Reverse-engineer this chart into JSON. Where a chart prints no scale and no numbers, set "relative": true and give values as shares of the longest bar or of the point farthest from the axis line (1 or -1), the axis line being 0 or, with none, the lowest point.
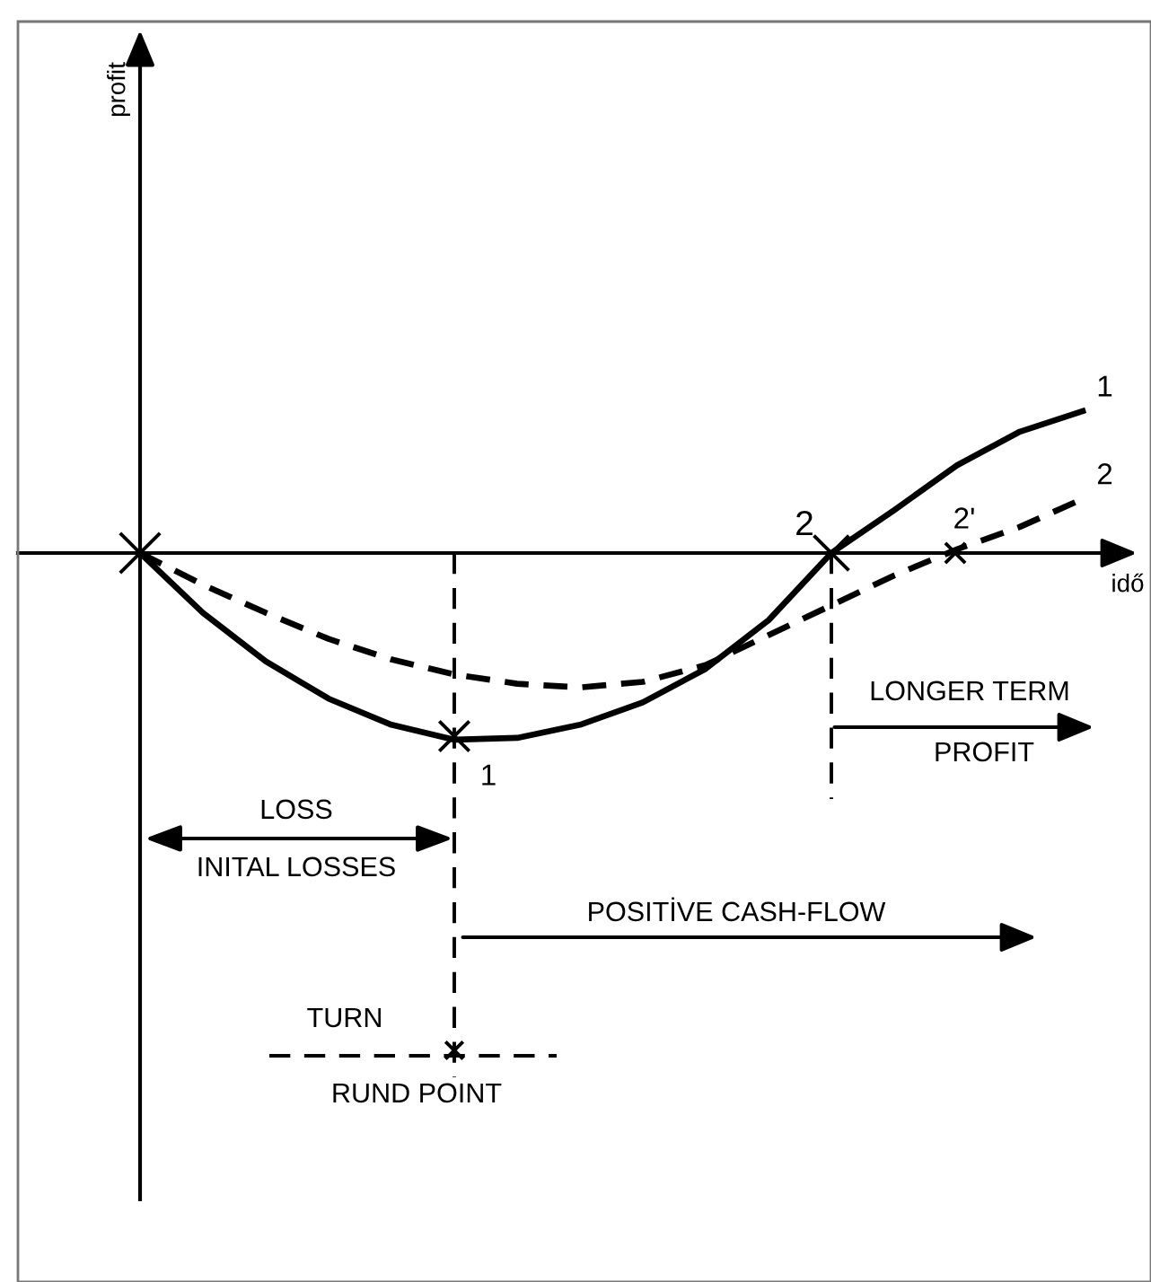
{
  "chart_data": {
    "type": "line",
    "relative": true,
    "xlabel": "idő",
    "categories": [
      null,
      null,
      null,
      null,
      null,
      null,
      null,
      null,
      null,
      null,
      null,
      null,
      null,
      null,
      null,
      null
    ],
    "series": [
      {
        "name": "1",
        "color": "#000000",
        "line_style": "solid",
        "values": [
          0,
          -0.32,
          -0.58,
          -0.78,
          -0.92,
          -1,
          -0.99,
          -0.92,
          -0.8,
          -0.62,
          -0.36,
          0,
          0.23,
          0.47,
          0.65,
          0.76
        ]
      },
      {
        "name": "2",
        "color": "#000000",
        "line_style": "dashed",
        "values": [
          0,
          -0.17,
          -0.32,
          -0.46,
          -0.57,
          -0.65,
          -0.7,
          -0.72,
          -0.69,
          -0.6,
          -0.44,
          -0.28,
          -0.12,
          0.02,
          0.14,
          0.29
        ]
      }
    ],
    "annotations": [
      "1",
      "2",
      "2'",
      "LOSS",
      "INITAL LOSSES",
      "LONGER TERM",
      "PROFIT",
      "POSITİVE CASH-FLOW",
      "TURN",
      "RUND POINT",
      "profit"
    ],
    "marker": "none"
  }
}
